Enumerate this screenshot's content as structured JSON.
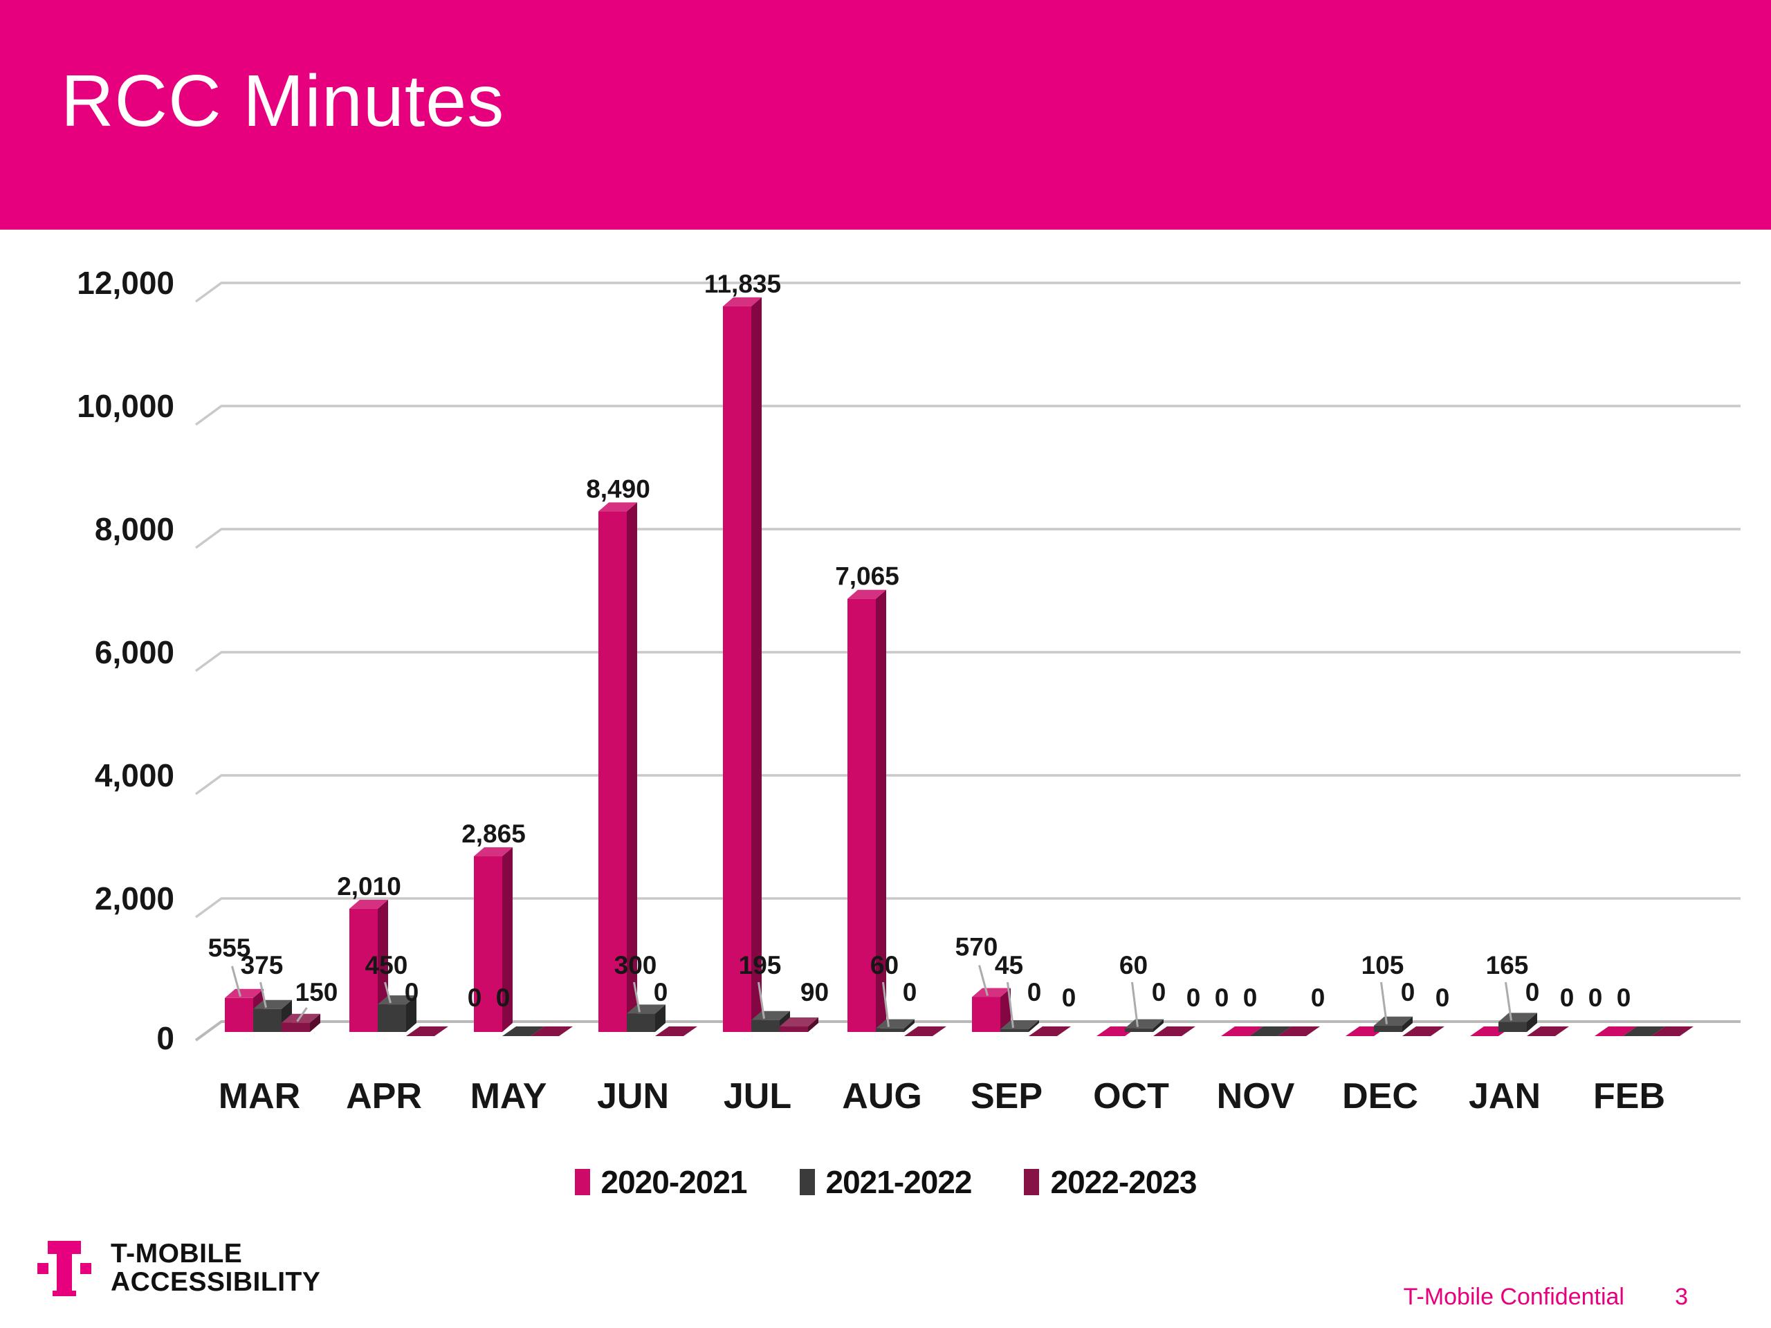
{
  "slide": {
    "title": "RCC Minutes",
    "logo": {
      "line1": "T-MOBILE",
      "line2": "ACCESSIBILITY"
    },
    "footer": {
      "confidential": "T-Mobile Confidential",
      "page_number": "3"
    }
  },
  "colors": {
    "brand_magenta": "#E6007E",
    "grid_line": "#C9C9C9",
    "axis_text": "#161616",
    "leader_line": "#ABABAB"
  },
  "chart_data": {
    "type": "bar",
    "style": "3d-clustered",
    "title": "RCC Minutes",
    "xlabel": "",
    "ylabel": "",
    "categories": [
      "MAR",
      "APR",
      "MAY",
      "JUN",
      "JUL",
      "AUG",
      "SEP",
      "OCT",
      "NOV",
      "DEC",
      "JAN",
      "FEB"
    ],
    "series": [
      {
        "name": "2020-2021",
        "color": "#CE0A69",
        "values": [
          555,
          2010,
          2865,
          8490,
          11835,
          7065,
          570,
          0,
          0,
          0,
          0,
          0
        ]
      },
      {
        "name": "2021-2022",
        "color": "#3B3B3B",
        "values": [
          375,
          450,
          0,
          300,
          195,
          60,
          45,
          60,
          0,
          105,
          165,
          0
        ]
      },
      {
        "name": "2022-2023",
        "color": "#871245",
        "values": [
          150,
          0,
          0,
          0,
          90,
          0,
          0,
          0,
          0,
          0,
          0,
          0
        ]
      }
    ],
    "yticks": [
      0,
      2000,
      4000,
      6000,
      8000,
      10000,
      12000
    ],
    "ylim": [
      0,
      12000
    ],
    "grid": true,
    "data_labels": true,
    "legend_position": "bottom"
  }
}
